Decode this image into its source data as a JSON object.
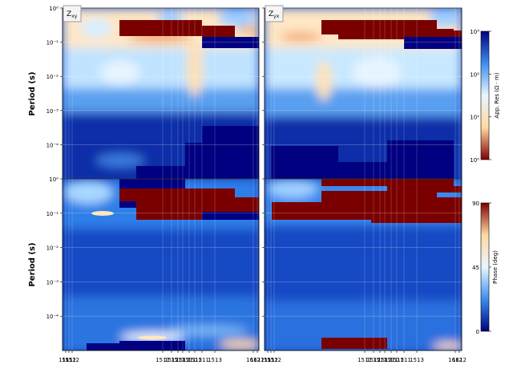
{
  "chart_data": [
    {
      "type": "heatmap",
      "panel": "top-left",
      "title": "Z_xy",
      "title_main": "Z",
      "title_sub": "xy",
      "ylabel": "Period (s)",
      "y_scale": "log",
      "y_range": [
        1e-05,
        1
      ],
      "y_ticks": [
        "10⁻⁴",
        "10⁻³",
        "10⁻²",
        "10⁻¹",
        "10⁰"
      ],
      "quantity": "apparent resistivity",
      "grid": true
    },
    {
      "type": "heatmap",
      "panel": "top-right",
      "title": "Z_yx",
      "title_main": "Z",
      "title_sub": "yx",
      "y_scale": "log",
      "y_range": [
        1e-05,
        1
      ],
      "y_ticks": [
        "10⁻⁴",
        "10⁻³",
        "10⁻²",
        "10⁻¹",
        "10⁰"
      ],
      "quantity": "apparent resistivity",
      "grid": true
    },
    {
      "type": "heatmap",
      "panel": "bottom-left",
      "ylabel": "Period (s)",
      "y_scale": "log",
      "y_range": [
        1e-05,
        1
      ],
      "y_ticks": [
        "10⁻⁴",
        "10⁻³",
        "10⁻²",
        "10⁻¹",
        "10⁰"
      ],
      "x_ticks": [
        "1511",
        "1512",
        "1512",
        "1511",
        "1512",
        "1511",
        "1512",
        "1511",
        "1512",
        "1511",
        "1513",
        "1612",
        "1612"
      ],
      "quantity": "phase",
      "grid": true
    },
    {
      "type": "heatmap",
      "panel": "bottom-right",
      "y_scale": "log",
      "y_range": [
        1e-05,
        1
      ],
      "x_ticks": [
        "1511",
        "1512",
        "1512",
        "1511",
        "1512",
        "1511",
        "1512",
        "1511",
        "1512",
        "1511",
        "1513",
        "1612",
        "1612"
      ],
      "quantity": "phase",
      "grid": true
    }
  ],
  "colorbars": {
    "resistivity": {
      "label": "App. Res (Ω · m)",
      "scale": "log",
      "range": [
        1,
        1000
      ],
      "ticks": [
        "10³",
        "10²",
        "10¹",
        "10⁰"
      ],
      "colors": [
        "#800000",
        "#ffd9a0",
        "#e8f6ff",
        "#3a8ef0",
        "#000080"
      ]
    },
    "phase": {
      "label": "Phase (deg)",
      "range": [
        0,
        90
      ],
      "ticks": [
        "90",
        "45",
        "0"
      ],
      "colors": [
        "#000080",
        "#3a8ef0",
        "#e8f6ff",
        "#ffd9a0",
        "#800000"
      ]
    }
  },
  "colors": {
    "dark_blue": "#000080",
    "dark_red": "#7a0000",
    "mid_blue": "#4a90e8",
    "light_blue": "#cfe9ff",
    "cream": "#fff0d8",
    "orange": "#f0a050"
  }
}
